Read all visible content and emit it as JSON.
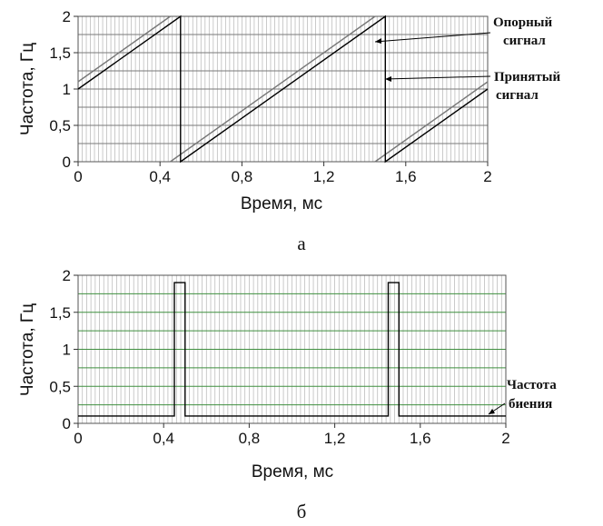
{
  "chart_data": [
    {
      "type": "line",
      "caption": "а",
      "xlabel": "Время, мс",
      "ylabel": "Частота, Гц",
      "xlim": [
        0,
        2
      ],
      "ylim": [
        0,
        2
      ],
      "xticks": [
        "0",
        "0,4",
        "0,8",
        "1,2",
        "1,6",
        "2"
      ],
      "yticks": [
        "0",
        "0,5",
        "1",
        "1,5",
        "2"
      ],
      "grid": true,
      "series": [
        {
          "name": "Опорный сигнал",
          "color": "#777777",
          "segments": [
            [
              [
                0,
                1.1
              ],
              [
                0.45,
                2.0
              ]
            ],
            [
              [
                0.45,
                0.0
              ],
              [
                1.45,
                2.0
              ]
            ],
            [
              [
                1.45,
                0.0
              ],
              [
                2.0,
                1.1
              ]
            ]
          ]
        },
        {
          "name": "Принятый сигнал",
          "color": "#000000",
          "segments": [
            [
              [
                0,
                1.0
              ],
              [
                0.5,
                2.0
              ],
              [
                0.5,
                0.0
              ],
              [
                1.5,
                2.0
              ],
              [
                1.5,
                0.0
              ],
              [
                2.0,
                1.0
              ]
            ]
          ]
        }
      ],
      "annotations": [
        {
          "lines": [
            "Опорный",
            "сигнал"
          ]
        },
        {
          "lines": [
            "Принятый",
            "сигнал"
          ]
        }
      ]
    },
    {
      "type": "line",
      "caption": "б",
      "xlabel": "Время, мс",
      "ylabel": "Частота, Гц",
      "xlim": [
        0,
        2
      ],
      "ylim": [
        0,
        2
      ],
      "xticks": [
        "0",
        "0,4",
        "0,8",
        "1,2",
        "1,6",
        "2"
      ],
      "yticks": [
        "0",
        "0,5",
        "1",
        "1,5",
        "2"
      ],
      "grid": true,
      "series": [
        {
          "name": "Частота биения",
          "color": "#000000",
          "points": [
            [
              0,
              0.1
            ],
            [
              0.45,
              0.1
            ],
            [
              0.45,
              1.9
            ],
            [
              0.5,
              1.9
            ],
            [
              0.5,
              0.1
            ],
            [
              1.45,
              0.1
            ],
            [
              1.45,
              1.9
            ],
            [
              1.5,
              1.9
            ],
            [
              1.5,
              0.1
            ],
            [
              2.0,
              0.1
            ]
          ]
        }
      ],
      "annotations": [
        {
          "lines": [
            "Частота",
            "биения"
          ]
        }
      ]
    }
  ]
}
